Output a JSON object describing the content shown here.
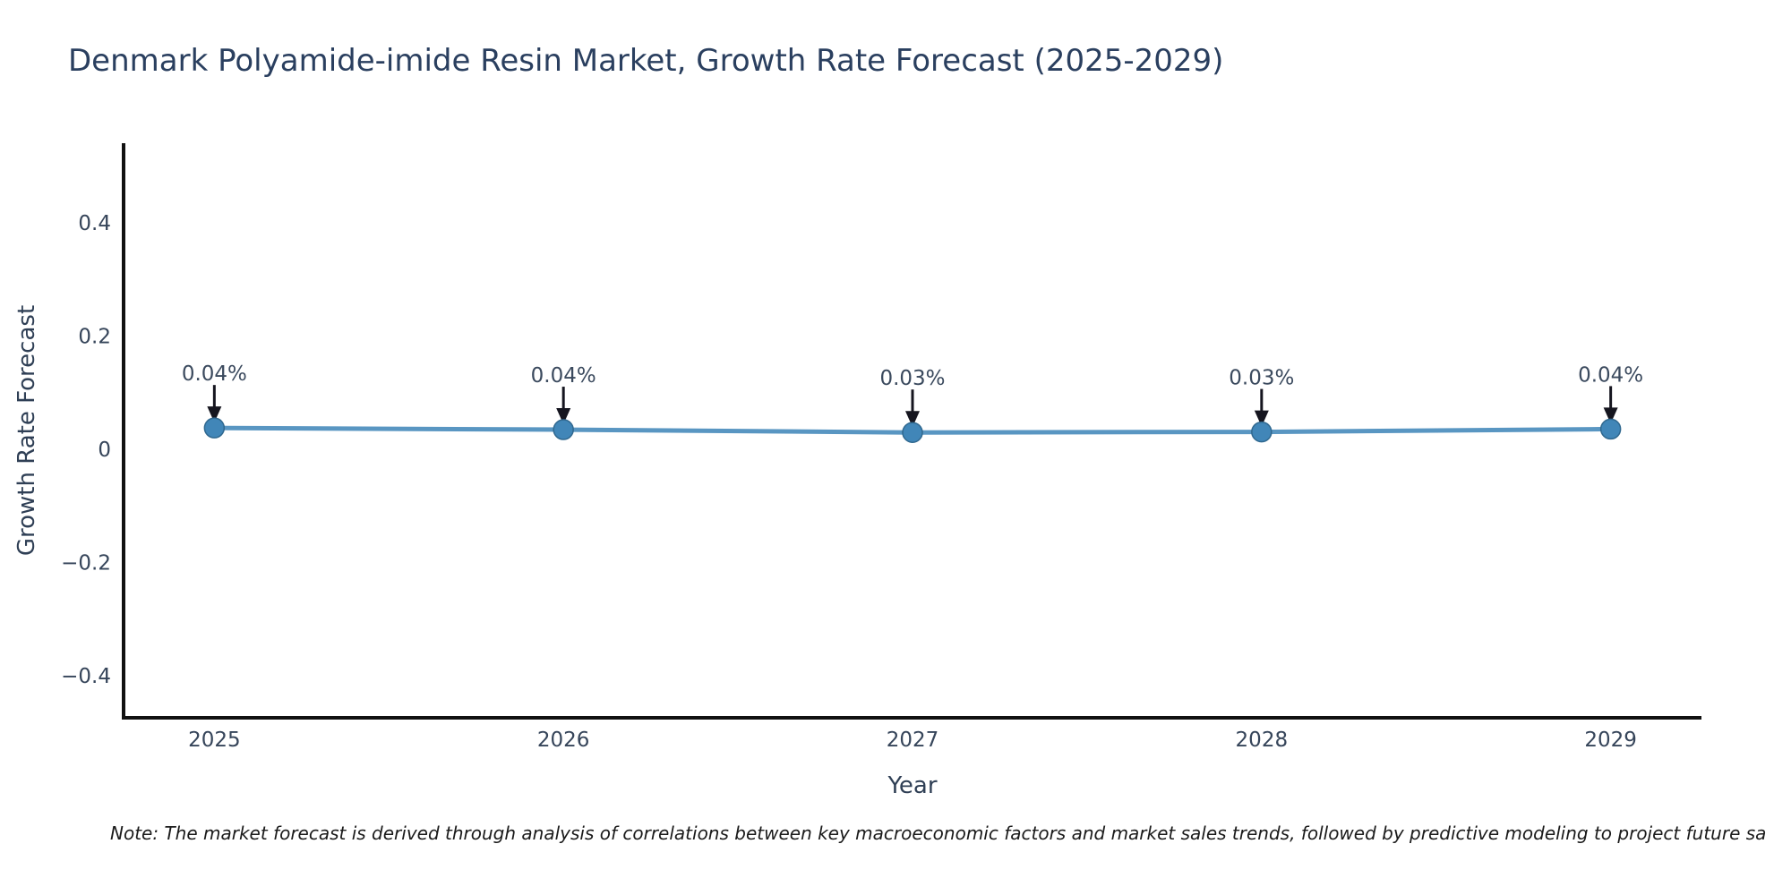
{
  "title": "Denmark Polyamide-imide Resin Market, Growth Rate Forecast (2025-2029)",
  "footnote": "Note: The market forecast is derived through analysis of correlations between key macroeconomic factors and market sales trends, followed by predictive modeling to project future sa",
  "chart_data": {
    "type": "line",
    "title": "Denmark Polyamide-imide Resin Market, Growth Rate Forecast (2025-2029)",
    "xlabel": "Year",
    "ylabel": "Growth Rate Forecast",
    "x": [
      2025,
      2026,
      2027,
      2028,
      2029
    ],
    "series": [
      {
        "name": "Growth Rate Forecast",
        "values": [
          0.039,
          0.036,
          0.031,
          0.032,
          0.037
        ]
      }
    ],
    "point_labels": [
      "0.04%",
      "0.04%",
      "0.03%",
      "0.03%",
      "0.04%"
    ],
    "xticks": {
      "values": [
        2025,
        2026,
        2027,
        2028,
        2029
      ],
      "labels": [
        "2025",
        "2026",
        "2027",
        "2028",
        "2029"
      ]
    },
    "yticks": {
      "values": [
        0.4,
        0.2,
        0,
        -0.2,
        -0.4
      ],
      "labels": [
        "0.4",
        "0.2",
        "0",
        "−0.2",
        "−0.4"
      ]
    },
    "xlim": [
      2024.74,
      2029.26
    ],
    "ylim": [
      -0.473,
      0.542
    ],
    "grid": false,
    "legend": "none",
    "colors": {
      "line": "#5090bf",
      "marker_fill": "#4186b8",
      "marker_edge": "#30688f",
      "arrow": "#15151f",
      "tick_text": "#36455a",
      "axis_label_text": "#2f3f55",
      "annotation_text": "#3b4a5e",
      "spine": "#111111",
      "title": "#2a3f5f"
    }
  }
}
